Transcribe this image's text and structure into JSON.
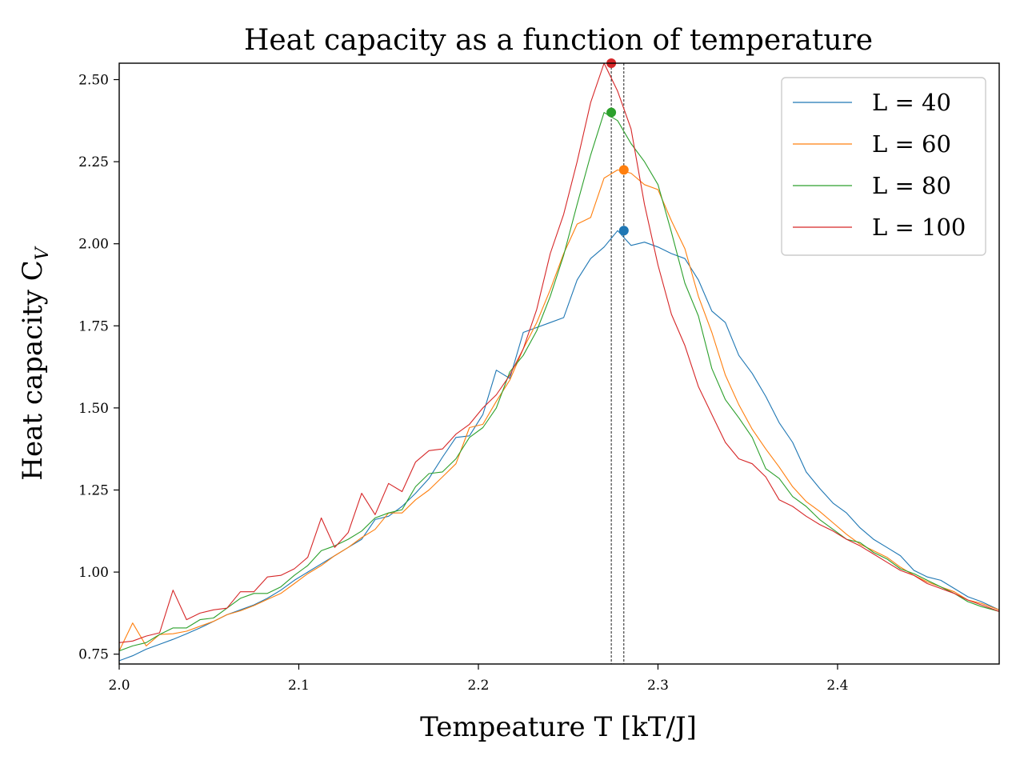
{
  "chart_data": {
    "type": "line",
    "title": "Heat capacity as a function of temperature",
    "xlabel": "Tempeature T [kT/J]",
    "ylabel": "Heat capacity C",
    "ylabel_sub": "V",
    "xlim": [
      2.0,
      2.49
    ],
    "ylim": [
      0.72,
      2.55
    ],
    "xticks": [
      2.0,
      2.1,
      2.2,
      2.3,
      2.4
    ],
    "xtick_labels": [
      "2.0",
      "2.1",
      "2.2",
      "2.3",
      "2.4"
    ],
    "yticks": [
      0.75,
      1.0,
      1.25,
      1.5,
      1.75,
      2.0,
      2.25,
      2.5
    ],
    "ytick_labels": [
      "0.75",
      "1.00",
      "1.25",
      "1.50",
      "1.75",
      "2.00",
      "2.25",
      "2.50"
    ],
    "grid": false,
    "legend_position": "top-right",
    "series": [
      {
        "name": "L = 40",
        "color": "#1f77b4",
        "x": [
          2.0,
          2.0075,
          2.015,
          2.0225,
          2.03,
          2.0375,
          2.045,
          2.0525,
          2.06,
          2.0675,
          2.075,
          2.0825,
          2.09,
          2.0975,
          2.105,
          2.1125,
          2.12,
          2.1275,
          2.135,
          2.1425,
          2.15,
          2.1575,
          2.165,
          2.1725,
          2.18,
          2.1875,
          2.195,
          2.2025,
          2.21,
          2.2175,
          2.225,
          2.2325,
          2.24,
          2.2475,
          2.255,
          2.2625,
          2.27,
          2.2775,
          2.285,
          2.2925,
          2.3,
          2.3075,
          2.315,
          2.3225,
          2.33,
          2.3375,
          2.345,
          2.3525,
          2.36,
          2.3675,
          2.375,
          2.3825,
          2.39,
          2.3975,
          2.405,
          2.4125,
          2.42,
          2.4275,
          2.435,
          2.4425,
          2.45,
          2.4575,
          2.465,
          2.4725,
          2.48,
          2.49
        ],
        "values": [
          0.73,
          0.745,
          0.765,
          0.78,
          0.795,
          0.812,
          0.83,
          0.85,
          0.87,
          0.885,
          0.9,
          0.92,
          0.945,
          0.975,
          1.0,
          1.025,
          1.05,
          1.075,
          1.1,
          1.16,
          1.17,
          1.2,
          1.24,
          1.285,
          1.35,
          1.41,
          1.415,
          1.48,
          1.615,
          1.59,
          1.73,
          1.745,
          1.76,
          1.775,
          1.89,
          1.955,
          1.99,
          2.04,
          1.995,
          2.005,
          1.99,
          1.97,
          1.955,
          1.89,
          1.795,
          1.76,
          1.66,
          1.605,
          1.535,
          1.455,
          1.395,
          1.305,
          1.255,
          1.21,
          1.18,
          1.135,
          1.1,
          1.075,
          1.05,
          1.005,
          0.985,
          0.975,
          0.95,
          0.925,
          0.91,
          0.885
        ],
        "peak": [
          2.281,
          2.04
        ]
      },
      {
        "name": "L = 60",
        "color": "#ff7f0e",
        "x": [
          2.0,
          2.0075,
          2.015,
          2.0225,
          2.03,
          2.0375,
          2.045,
          2.0525,
          2.06,
          2.0675,
          2.075,
          2.0825,
          2.09,
          2.0975,
          2.105,
          2.1125,
          2.12,
          2.1275,
          2.135,
          2.1425,
          2.15,
          2.1575,
          2.165,
          2.1725,
          2.18,
          2.1875,
          2.195,
          2.2025,
          2.21,
          2.2175,
          2.225,
          2.2325,
          2.24,
          2.2475,
          2.255,
          2.2625,
          2.27,
          2.2775,
          2.285,
          2.2925,
          2.3,
          2.3075,
          2.315,
          2.3225,
          2.33,
          2.3375,
          2.345,
          2.3525,
          2.36,
          2.3675,
          2.375,
          2.3825,
          2.39,
          2.3975,
          2.405,
          2.4125,
          2.42,
          2.4275,
          2.435,
          2.4425,
          2.45,
          2.4575,
          2.465,
          2.4725,
          2.48,
          2.49
        ],
        "values": [
          0.76,
          0.845,
          0.775,
          0.81,
          0.812,
          0.82,
          0.835,
          0.85,
          0.87,
          0.882,
          0.898,
          0.917,
          0.935,
          0.965,
          0.995,
          1.02,
          1.05,
          1.075,
          1.105,
          1.13,
          1.18,
          1.18,
          1.22,
          1.25,
          1.29,
          1.33,
          1.44,
          1.45,
          1.52,
          1.585,
          1.68,
          1.76,
          1.86,
          1.97,
          2.06,
          2.08,
          2.2,
          2.225,
          2.215,
          2.18,
          2.165,
          2.07,
          1.985,
          1.84,
          1.73,
          1.6,
          1.51,
          1.435,
          1.375,
          1.32,
          1.26,
          1.215,
          1.185,
          1.15,
          1.115,
          1.085,
          1.065,
          1.045,
          1.015,
          0.99,
          0.97,
          0.955,
          0.94,
          0.915,
          0.905,
          0.885
        ],
        "peak": [
          2.281,
          2.225
        ]
      },
      {
        "name": "L = 80",
        "color": "#2ca02c",
        "x": [
          2.0,
          2.0075,
          2.015,
          2.0225,
          2.03,
          2.0375,
          2.045,
          2.0525,
          2.06,
          2.0675,
          2.075,
          2.0825,
          2.09,
          2.0975,
          2.105,
          2.1125,
          2.12,
          2.1275,
          2.135,
          2.1425,
          2.15,
          2.1575,
          2.165,
          2.1725,
          2.18,
          2.1875,
          2.195,
          2.2025,
          2.21,
          2.2175,
          2.225,
          2.2325,
          2.24,
          2.2475,
          2.255,
          2.2625,
          2.27,
          2.2775,
          2.285,
          2.2925,
          2.3,
          2.3075,
          2.315,
          2.3225,
          2.33,
          2.3375,
          2.345,
          2.3525,
          2.36,
          2.3675,
          2.375,
          2.3825,
          2.39,
          2.3975,
          2.405,
          2.4125,
          2.42,
          2.4275,
          2.435,
          2.4425,
          2.45,
          2.4575,
          2.465,
          2.4725,
          2.48,
          2.49
        ],
        "values": [
          0.76,
          0.775,
          0.785,
          0.81,
          0.83,
          0.83,
          0.855,
          0.86,
          0.89,
          0.92,
          0.935,
          0.935,
          0.955,
          0.99,
          1.02,
          1.065,
          1.08,
          1.1,
          1.125,
          1.165,
          1.18,
          1.19,
          1.26,
          1.3,
          1.305,
          1.345,
          1.41,
          1.44,
          1.5,
          1.61,
          1.66,
          1.735,
          1.84,
          1.965,
          2.12,
          2.27,
          2.4,
          2.375,
          2.305,
          2.25,
          2.18,
          2.035,
          1.88,
          1.78,
          1.62,
          1.525,
          1.47,
          1.41,
          1.315,
          1.285,
          1.23,
          1.2,
          1.16,
          1.13,
          1.1,
          1.09,
          1.06,
          1.04,
          1.01,
          0.995,
          0.975,
          0.955,
          0.935,
          0.91,
          0.895,
          0.88
        ],
        "peak": [
          2.274,
          2.4
        ]
      },
      {
        "name": "L = 100",
        "color": "#d62728",
        "x": [
          2.0,
          2.0075,
          2.015,
          2.0225,
          2.03,
          2.0375,
          2.045,
          2.0525,
          2.06,
          2.0675,
          2.075,
          2.0825,
          2.09,
          2.0975,
          2.105,
          2.1125,
          2.12,
          2.1275,
          2.135,
          2.1425,
          2.15,
          2.1575,
          2.165,
          2.1725,
          2.18,
          2.1875,
          2.195,
          2.2025,
          2.21,
          2.2175,
          2.225,
          2.2325,
          2.24,
          2.2475,
          2.255,
          2.2625,
          2.27,
          2.2775,
          2.285,
          2.2925,
          2.3,
          2.3075,
          2.315,
          2.3225,
          2.33,
          2.3375,
          2.345,
          2.3525,
          2.36,
          2.3675,
          2.375,
          2.3825,
          2.39,
          2.3975,
          2.405,
          2.4125,
          2.42,
          2.4275,
          2.435,
          2.4425,
          2.45,
          2.4575,
          2.465,
          2.4725,
          2.48,
          2.49
        ],
        "values": [
          0.785,
          0.79,
          0.805,
          0.815,
          0.945,
          0.855,
          0.875,
          0.885,
          0.89,
          0.94,
          0.94,
          0.985,
          0.99,
          1.01,
          1.045,
          1.165,
          1.075,
          1.12,
          1.24,
          1.175,
          1.27,
          1.245,
          1.335,
          1.37,
          1.375,
          1.42,
          1.45,
          1.5,
          1.54,
          1.6,
          1.68,
          1.8,
          1.97,
          2.09,
          2.25,
          2.43,
          2.55,
          2.465,
          2.35,
          2.12,
          1.935,
          1.785,
          1.69,
          1.565,
          1.48,
          1.395,
          1.345,
          1.33,
          1.29,
          1.22,
          1.2,
          1.17,
          1.145,
          1.125,
          1.1,
          1.08,
          1.055,
          1.03,
          1.005,
          0.99,
          0.965,
          0.95,
          0.935,
          0.915,
          0.9,
          0.88
        ],
        "peak": [
          2.274,
          2.55
        ]
      }
    ],
    "vlines": [
      2.274,
      2.281
    ]
  }
}
